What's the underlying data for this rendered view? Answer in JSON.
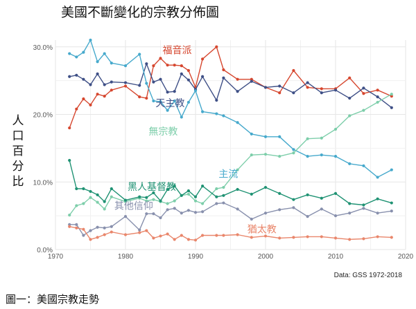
{
  "chart_data": {
    "type": "line",
    "title": "美國不斷變化的宗教分佈圖",
    "ylabel": "人口百分比",
    "xlabel": "",
    "xlim": [
      1970,
      2020
    ],
    "ylim": [
      0,
      31
    ],
    "x_ticks": [
      "1970",
      "1980",
      "1990",
      "2000",
      "2010",
      "2020"
    ],
    "y_ticks": [
      "0.0%",
      "10.0%",
      "20.0%",
      "30.0%"
    ],
    "source": "Data: GSS 1972-2018",
    "caption": "圖一：美國宗教走勢",
    "series": [
      {
        "name": "福音派",
        "color": "#d6472f",
        "x": [
          1972,
          1973,
          1974,
          1975,
          1976,
          1977,
          1978,
          1980,
          1982,
          1983,
          1984,
          1985,
          1986,
          1987,
          1988,
          1989,
          1990,
          1991,
          1993,
          1994,
          1996,
          1998,
          2000,
          2002,
          2004,
          2006,
          2008,
          2010,
          2012,
          2014,
          2016,
          2018
        ],
        "values": [
          18.0,
          20.8,
          22.3,
          21.4,
          23.0,
          22.7,
          23.6,
          24.2,
          22.6,
          22.4,
          27.2,
          28.3,
          27.3,
          27.3,
          27.2,
          26.5,
          24.0,
          28.2,
          30.0,
          26.6,
          25.2,
          25.2,
          24.0,
          23.2,
          26.5,
          24.0,
          23.8,
          23.8,
          25.4,
          23.1,
          23.6,
          22.7
        ]
      },
      {
        "name": "天主教",
        "color": "#3e4f86",
        "x": [
          1972,
          1973,
          1974,
          1975,
          1976,
          1977,
          1978,
          1980,
          1982,
          1983,
          1984,
          1985,
          1986,
          1987,
          1988,
          1989,
          1990,
          1991,
          1993,
          1994,
          1996,
          1998,
          2000,
          2002,
          2004,
          2006,
          2008,
          2010,
          2012,
          2014,
          2016,
          2018
        ],
        "values": [
          25.6,
          25.8,
          25.2,
          24.4,
          26.0,
          24.4,
          24.8,
          24.7,
          24.3,
          27.5,
          24.8,
          25.2,
          23.3,
          23.4,
          26.0,
          25.1,
          23.7,
          25.6,
          22.1,
          25.4,
          23.4,
          24.9,
          24.0,
          24.2,
          23.2,
          24.7,
          23.2,
          23.6,
          22.4,
          23.9,
          22.6,
          21.0
        ]
      },
      {
        "name": "主流",
        "color": "#46a9cc",
        "x": [
          1972,
          1973,
          1974,
          1975,
          1976,
          1977,
          1978,
          1980,
          1982,
          1983,
          1984,
          1985,
          1986,
          1987,
          1988,
          1989,
          1990,
          1991,
          1993,
          1994,
          1996,
          1998,
          2000,
          2002,
          2004,
          2006,
          2008,
          2010,
          2012,
          2014,
          2016,
          2018
        ],
        "values": [
          29.0,
          28.5,
          29.2,
          31.0,
          27.8,
          29.0,
          27.6,
          27.2,
          28.9,
          24.6,
          22.0,
          21.9,
          20.6,
          22.0,
          19.6,
          21.8,
          23.5,
          20.4,
          20.1,
          19.8,
          18.8,
          17.1,
          16.7,
          16.7,
          14.8,
          13.8,
          14.0,
          13.8,
          12.7,
          12.4,
          10.7,
          11.8
        ]
      },
      {
        "name": "無宗教",
        "color": "#7dceaa",
        "x": [
          1972,
          1973,
          1974,
          1975,
          1976,
          1977,
          1978,
          1980,
          1982,
          1983,
          1984,
          1985,
          1986,
          1987,
          1988,
          1989,
          1990,
          1991,
          1993,
          1994,
          1996,
          1998,
          2000,
          2002,
          2004,
          2006,
          2008,
          2010,
          2012,
          2014,
          2016,
          2018
        ],
        "values": [
          5.1,
          6.5,
          6.8,
          7.7,
          7.0,
          6.0,
          7.8,
          7.1,
          7.6,
          7.2,
          7.4,
          7.1,
          6.8,
          7.2,
          8.0,
          8.2,
          7.2,
          6.8,
          9.0,
          9.2,
          11.8,
          14.0,
          14.1,
          13.8,
          14.3,
          16.4,
          16.5,
          17.8,
          19.8,
          20.6,
          21.8,
          23.0
        ]
      },
      {
        "name": "黑人基督教",
        "color": "#1f9273",
        "x": [
          1972,
          1973,
          1974,
          1975,
          1976,
          1977,
          1978,
          1980,
          1982,
          1983,
          1984,
          1985,
          1986,
          1987,
          1988,
          1989,
          1990,
          1991,
          1993,
          1994,
          1996,
          1998,
          2000,
          2002,
          2004,
          2006,
          2008,
          2010,
          2012,
          2014,
          2016,
          2018
        ],
        "values": [
          13.2,
          9.0,
          9.0,
          8.6,
          8.1,
          7.1,
          9.0,
          7.3,
          7.8,
          7.7,
          8.4,
          7.2,
          8.9,
          9.4,
          8.0,
          8.7,
          7.8,
          9.4,
          7.8,
          8.0,
          8.9,
          8.2,
          9.2,
          8.3,
          7.4,
          8.1,
          7.6,
          8.3,
          6.8,
          6.6,
          7.5,
          6.9
        ]
      },
      {
        "name": "其他信仰",
        "color": "#8890ad",
        "x": [
          1972,
          1973,
          1974,
          1975,
          1976,
          1977,
          1978,
          1980,
          1982,
          1983,
          1984,
          1985,
          1986,
          1987,
          1988,
          1989,
          1990,
          1991,
          1993,
          1994,
          1996,
          1998,
          2000,
          2002,
          2004,
          2006,
          2008,
          2010,
          2012,
          2014,
          2016,
          2018
        ],
        "values": [
          3.7,
          3.7,
          2.1,
          2.8,
          3.3,
          3.2,
          3.4,
          4.9,
          2.9,
          5.3,
          5.3,
          4.7,
          5.9,
          6.1,
          5.4,
          5.8,
          5.5,
          5.6,
          6.8,
          6.9,
          6.0,
          4.5,
          5.4,
          5.9,
          6.2,
          4.9,
          6.0,
          5.0,
          5.4,
          6.1,
          5.4,
          5.7
        ]
      },
      {
        "name": "猶太教",
        "color": "#e9866b",
        "x": [
          1972,
          1973,
          1974,
          1975,
          1976,
          1977,
          1978,
          1980,
          1982,
          1983,
          1984,
          1985,
          1986,
          1987,
          1988,
          1989,
          1990,
          1991,
          1993,
          1994,
          1996,
          1998,
          2000,
          2002,
          2004,
          2006,
          2008,
          2010,
          2012,
          2014,
          2016,
          2018
        ],
        "values": [
          3.4,
          3.2,
          3.0,
          1.5,
          1.8,
          2.2,
          2.6,
          2.2,
          2.5,
          2.8,
          1.7,
          2.0,
          2.3,
          1.5,
          2.1,
          1.5,
          1.4,
          2.1,
          2.1,
          2.1,
          2.2,
          1.8,
          2.0,
          1.7,
          1.8,
          1.9,
          1.9,
          1.7,
          1.5,
          1.6,
          1.9,
          1.8
        ]
      }
    ]
  }
}
